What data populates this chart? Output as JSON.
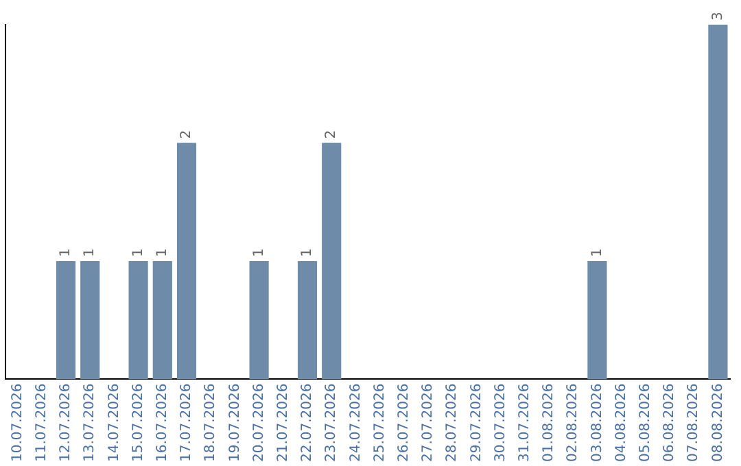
{
  "chart_data": {
    "type": "bar",
    "categories": [
      "10.07.2026",
      "11.07.2026",
      "12.07.2026",
      "13.07.2026",
      "14.07.2026",
      "15.07.2026",
      "16.07.2026",
      "17.07.2026",
      "18.07.2026",
      "19.07.2026",
      "20.07.2026",
      "21.07.2026",
      "22.07.2026",
      "23.07.2026",
      "24.07.2026",
      "25.07.2026",
      "26.07.2026",
      "27.07.2026",
      "28.07.2026",
      "29.07.2026",
      "30.07.2026",
      "31.07.2026",
      "01.08.2026",
      "02.08.2026",
      "03.08.2026",
      "04.08.2026",
      "05.08.2026",
      "06.08.2026",
      "07.08.2026",
      "08.08.2026"
    ],
    "values": [
      0,
      0,
      1,
      1,
      0,
      1,
      1,
      2,
      0,
      0,
      1,
      0,
      1,
      2,
      0,
      0,
      0,
      0,
      0,
      0,
      0,
      0,
      0,
      0,
      1,
      0,
      0,
      0,
      0,
      3
    ],
    "value_labels": [
      null,
      null,
      "1",
      "1",
      null,
      "1",
      "1",
      "2",
      null,
      null,
      "1",
      null,
      "1",
      "2",
      null,
      null,
      null,
      null,
      null,
      null,
      null,
      null,
      null,
      null,
      "1",
      null,
      null,
      null,
      null,
      "3"
    ],
    "color": "#6e8caa",
    "ylim": [
      0,
      3
    ],
    "grid": false,
    "legend": false,
    "tick_labels": "x"
  }
}
